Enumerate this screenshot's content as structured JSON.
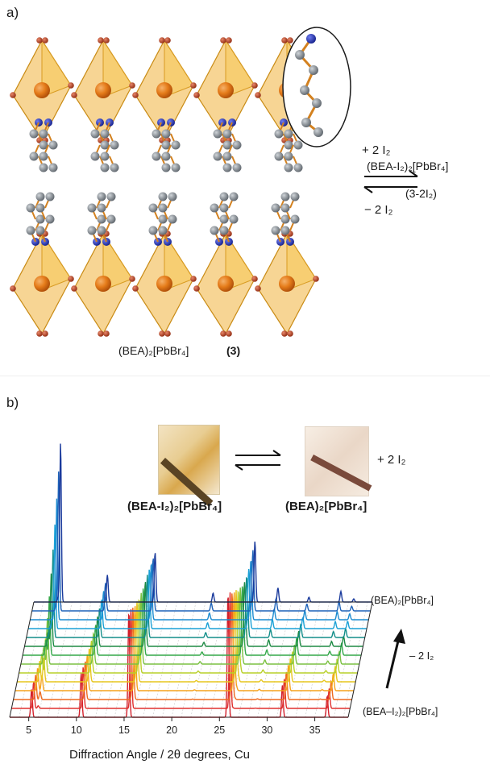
{
  "panel_a": {
    "label": "a)",
    "forward_reagent": "+ 2 I₂",
    "reverse_reagent": "− 2 I₂",
    "product_formula": "(BEA-I₂)₂[PbBr₄]",
    "product_id": "(3-2I₂)",
    "compound_formula": "(BEA)₂[PbBr₄]",
    "compound_id": "(3)"
  },
  "panel_b": {
    "label": "b)",
    "photo_left_caption": "(BEA-I₂)₂[PbBr₄]",
    "photo_right_caption": "(BEA)₂[PbBr₄]",
    "photo_reagent": "+ 2 I₂",
    "top_trace_label": "(BEA)₂[PbBr₄]",
    "bottom_trace_label": "(BEA–I₂)₂[PbBr₄]",
    "arrow_label": "– 2 I₂",
    "x_axis_label": "Diffraction Angle / 2θ degrees, Cu"
  },
  "chart_data": {
    "type": "line",
    "xlabel": "Diffraction Angle / 2θ degrees, Cu",
    "x_ticks": [
      5,
      10,
      15,
      20,
      25,
      30,
      35
    ],
    "xlim": [
      3,
      38.5
    ],
    "n_traces": 14,
    "trace_colors": [
      "#d21f2b",
      "#e0302e",
      "#ee6a1f",
      "#f5a21b",
      "#e7c61f",
      "#b9d02a",
      "#7cc142",
      "#35a84a",
      "#1e8a44",
      "#138e8a",
      "#1aa1d6",
      "#1c8bd0",
      "#1e62b8",
      "#1a3a9c"
    ],
    "series": [
      {
        "name": "(BEA–I₂)₂[PbBr₄]",
        "peaks": [
          [
            5.3,
            0.16
          ],
          [
            10.5,
            0.25
          ],
          [
            15.5,
            0.6
          ],
          [
            25.9,
            0.7
          ],
          [
            31.6,
            0.18
          ],
          [
            36.3,
            0.12
          ]
        ]
      },
      {
        "name": "(BEA)₂[PbBr₄]",
        "peaks": [
          [
            5.8,
            0.9
          ],
          [
            10.7,
            0.12
          ],
          [
            15.7,
            0.2
          ],
          [
            21.8,
            0.05
          ],
          [
            26.2,
            0.25
          ],
          [
            28.6,
            0.08
          ],
          [
            35.2,
            0.06
          ]
        ]
      }
    ]
  }
}
